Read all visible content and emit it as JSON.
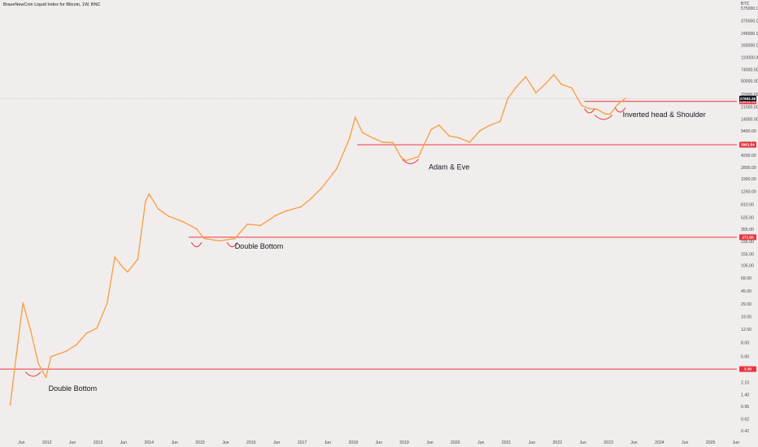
{
  "title": "BraveNewCoin Liquid Index for Bitcoin, 1W, BNC",
  "colors": {
    "background": "#f1edec",
    "candle": "#f7a24a",
    "support": "#e8343f",
    "annotation_curve": "#e8343f",
    "price_line": "#b2b5be",
    "price_badge": "#131722"
  },
  "chart_data": {
    "type": "line",
    "title": "BraveNewCoin Liquid Index for Bitcoin, 1W, BNC",
    "currency": "BTC",
    "y_scale": "log",
    "y_ticks": [
      "575000.00",
      "375000.00",
      "245000.00",
      "165000.00",
      "110000.00",
      "74000.00",
      "50000.00",
      "32000.00",
      "21000.00",
      "14000.00",
      "9400.00",
      "6300.00",
      "4200.00",
      "2800.00",
      "1900.00",
      "1250.00",
      "810.00",
      "525.00",
      "355.00",
      "235.00",
      "155.00",
      "105.00",
      "69.00",
      "45.00",
      "29.00",
      "19.00",
      "12.50",
      "8.00",
      "5.00",
      "3.20",
      "2.10",
      "1.40",
      "0.95",
      "0.62",
      "0.42"
    ],
    "x_ticks": [
      "Jun",
      "2012",
      "Jun",
      "2013",
      "Jun",
      "2014",
      "Jun",
      "2015",
      "Jun",
      "2016",
      "Jun",
      "2017",
      "Jun",
      "2018",
      "Jun",
      "2019",
      "Jun",
      "2020",
      "Jun",
      "2021",
      "Jun",
      "2022",
      "Jun",
      "2023",
      "Jun",
      "2024",
      "Jun",
      "2025",
      "Jun"
    ],
    "series": [
      {
        "x": [
          2011.2,
          2011.35,
          2011.45,
          2011.6,
          2011.75,
          2011.9,
          2012.0,
          2012.3,
          2012.5,
          2012.7,
          2012.9,
          2013.1,
          2013.25,
          2013.4,
          2013.5,
          2013.7,
          2013.85,
          2013.92,
          2014.1,
          2014.3,
          2014.6,
          2014.85,
          2015.0,
          2015.3,
          2015.6,
          2015.85,
          2016.1,
          2016.4,
          2016.6,
          2016.9,
          2017.1,
          2017.3,
          2017.6,
          2017.85,
          2017.96,
          2018.1,
          2018.3,
          2018.5,
          2018.7,
          2018.85,
          2018.95,
          2019.2,
          2019.45,
          2019.6,
          2019.8,
          2020.0,
          2020.2,
          2020.4,
          2020.6,
          2020.8,
          2020.95,
          2021.1,
          2021.3,
          2021.5,
          2021.7,
          2021.85,
          2022.0,
          2022.2,
          2022.4,
          2022.55,
          2022.7,
          2022.85,
          2022.95,
          2023.1,
          2023.25
        ],
        "values": [
          1.0,
          8.0,
          30.0,
          12.0,
          4.0,
          2.5,
          5.0,
          6.0,
          7.5,
          11.0,
          13.0,
          30.0,
          140.0,
          100.0,
          85.0,
          130.0,
          900.0,
          1150.0,
          700.0,
          550.0,
          450.0,
          360.0,
          260.0,
          240.0,
          260.0,
          420.0,
          400.0,
          560.0,
          650.0,
          750.0,
          1000.0,
          1400.0,
          2700.0,
          7500.0,
          15000.0,
          9000.0,
          7500.0,
          6500.0,
          6400.0,
          4000.0,
          3500.0,
          4000.0,
          10000.0,
          11500.0,
          8000.0,
          7500.0,
          6500.0,
          9500.0,
          11500.0,
          13000.0,
          28000.0,
          40000.0,
          58000.0,
          34000.0,
          47000.0,
          62000.0,
          45000.0,
          40000.0,
          22000.0,
          20000.0,
          19500.0,
          16800.0,
          16500.0,
          23000.0,
          28000.0
        ]
      }
    ],
    "support_levels": [
      {
        "value": 3.3,
        "label": "3.30"
      },
      {
        "value": 271.5,
        "label": "271.50"
      },
      {
        "value": 5961.84,
        "label": "5961.84"
      },
      {
        "value": 25435.38,
        "label": "25435.38"
      }
    ],
    "current_price": {
      "value": 27993.38,
      "label": "27993.38"
    },
    "annotations": [
      {
        "text": "Double Bottom",
        "x": 2011.95,
        "y": 1.6
      },
      {
        "text": "Double Bottom",
        "x": 2015.6,
        "y": 185
      },
      {
        "text": "Adam & Eve",
        "x": 2019.4,
        "y": 2600
      },
      {
        "text": "Inverted head & Shoulder",
        "x": 2023.2,
        "y": 15000
      }
    ],
    "pattern_marks": [
      {
        "x_start": 2011.5,
        "x_end": 2011.8,
        "y": 2.7
      },
      {
        "x_start": 2014.75,
        "x_end": 2014.95,
        "y": 205
      },
      {
        "x_start": 2015.45,
        "x_end": 2015.65,
        "y": 205
      },
      {
        "x_start": 2018.88,
        "x_end": 2019.2,
        "y": 3300
      },
      {
        "x_start": 2022.45,
        "x_end": 2022.65,
        "y": 18000
      },
      {
        "x_start": 2022.65,
        "x_end": 2023.0,
        "y": 14500
      },
      {
        "x_start": 2023.05,
        "x_end": 2023.25,
        "y": 18500
      }
    ]
  }
}
